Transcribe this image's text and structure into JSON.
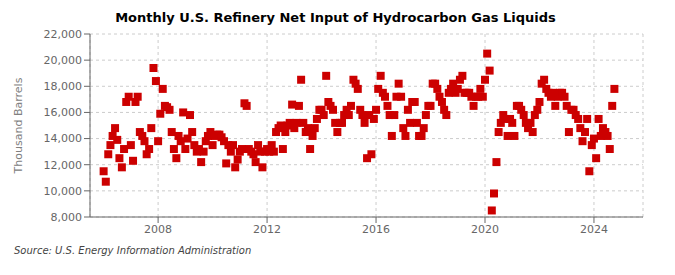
{
  "chart_data": {
    "type": "scatter",
    "title": "Monthly U.S. Refinery Net Input of Hydrocarbon Gas Liquids",
    "ylabel": "Thousand Barrels",
    "annotations": [
      "Source: U.S. Energy Information Administration"
    ],
    "color": "#cc0000",
    "marker": "square",
    "grid": true,
    "xlim": [
      2005.5,
      2025.8
    ],
    "xticks": [
      2008,
      2012,
      2016,
      2020,
      2024
    ],
    "ylim": [
      8000,
      22000
    ],
    "yticks": [
      {
        "value": 8000,
        "label": "8,000"
      },
      {
        "value": 10000,
        "label": "10,000"
      },
      {
        "value": 12000,
        "label": "12,000"
      },
      {
        "value": 14000,
        "label": "14,000"
      },
      {
        "value": 16000,
        "label": "16,000"
      },
      {
        "value": 18000,
        "label": "18,000"
      },
      {
        "value": 20000,
        "label": "20,000"
      },
      {
        "value": 22000,
        "label": "22,000"
      }
    ],
    "x": [
      2006.0,
      2006.08,
      2006.17,
      2006.25,
      2006.33,
      2006.42,
      2006.5,
      2006.58,
      2006.67,
      2006.75,
      2006.83,
      2006.92,
      2007.0,
      2007.08,
      2007.17,
      2007.25,
      2007.33,
      2007.42,
      2007.5,
      2007.58,
      2007.67,
      2007.75,
      2007.83,
      2007.92,
      2008.0,
      2008.08,
      2008.17,
      2008.25,
      2008.33,
      2008.42,
      2008.5,
      2008.58,
      2008.67,
      2008.75,
      2008.83,
      2008.92,
      2009.0,
      2009.08,
      2009.17,
      2009.25,
      2009.33,
      2009.42,
      2009.5,
      2009.58,
      2009.67,
      2009.75,
      2009.83,
      2009.92,
      2010.0,
      2010.08,
      2010.17,
      2010.25,
      2010.33,
      2010.42,
      2010.5,
      2010.58,
      2010.67,
      2010.75,
      2010.83,
      2010.92,
      2011.0,
      2011.08,
      2011.17,
      2011.25,
      2011.33,
      2011.42,
      2011.5,
      2011.58,
      2011.67,
      2011.75,
      2011.83,
      2011.92,
      2012.0,
      2012.08,
      2012.17,
      2012.25,
      2012.33,
      2012.42,
      2012.5,
      2012.58,
      2012.67,
      2012.75,
      2012.83,
      2012.92,
      2013.0,
      2013.08,
      2013.17,
      2013.25,
      2013.33,
      2013.42,
      2013.5,
      2013.58,
      2013.67,
      2013.75,
      2013.83,
      2013.92,
      2014.0,
      2014.08,
      2014.17,
      2014.25,
      2014.33,
      2014.42,
      2014.5,
      2014.58,
      2014.67,
      2014.75,
      2014.83,
      2014.92,
      2015.0,
      2015.08,
      2015.17,
      2015.25,
      2015.33,
      2015.42,
      2015.5,
      2015.58,
      2015.67,
      2015.75,
      2015.83,
      2015.92,
      2016.0,
      2016.08,
      2016.17,
      2016.25,
      2016.33,
      2016.42,
      2016.5,
      2016.58,
      2016.67,
      2016.75,
      2016.83,
      2016.92,
      2017.0,
      2017.08,
      2017.17,
      2017.25,
      2017.33,
      2017.42,
      2017.5,
      2017.58,
      2017.67,
      2017.75,
      2017.83,
      2017.92,
      2018.0,
      2018.08,
      2018.17,
      2018.25,
      2018.33,
      2018.42,
      2018.5,
      2018.58,
      2018.67,
      2018.75,
      2018.83,
      2018.92,
      2019.0,
      2019.08,
      2019.17,
      2019.25,
      2019.33,
      2019.42,
      2019.5,
      2019.58,
      2019.67,
      2019.75,
      2019.83,
      2019.92,
      2020.0,
      2020.08,
      2020.17,
      2020.25,
      2020.33,
      2020.42,
      2020.5,
      2020.58,
      2020.67,
      2020.75,
      2020.83,
      2020.92,
      2021.0,
      2021.08,
      2021.17,
      2021.25,
      2021.33,
      2021.42,
      2021.5,
      2021.58,
      2021.67,
      2021.75,
      2021.83,
      2021.92,
      2022.0,
      2022.08,
      2022.17,
      2022.25,
      2022.33,
      2022.42,
      2022.5,
      2022.58,
      2022.67,
      2022.75,
      2022.83,
      2022.92,
      2023.0,
      2023.08,
      2023.17,
      2023.25,
      2023.33,
      2023.42,
      2023.5,
      2023.58,
      2023.67,
      2023.75,
      2023.83,
      2023.92,
      2024.0,
      2024.08,
      2024.17,
      2024.25,
      2024.33,
      2024.42,
      2024.5,
      2024.58,
      2024.67,
      2024.75
    ],
    "values": [
      11500,
      10700,
      12800,
      13500,
      14200,
      14800,
      13900,
      12500,
      11800,
      13200,
      16800,
      17200,
      13500,
      12300,
      16800,
      17200,
      14500,
      14200,
      13800,
      12800,
      13200,
      14800,
      19400,
      18400,
      13800,
      15900,
      17800,
      16500,
      16400,
      16200,
      14500,
      13200,
      12500,
      14200,
      13800,
      16000,
      13200,
      14000,
      15800,
      14500,
      13500,
      13000,
      13200,
      12200,
      13000,
      13800,
      14200,
      14500,
      13500,
      14200,
      14300,
      14300,
      14100,
      13800,
      12100,
      13500,
      13000,
      13500,
      11800,
      12400,
      13000,
      13200,
      16700,
      16500,
      13200,
      13000,
      12800,
      12200,
      13500,
      13000,
      11800,
      13000,
      13200,
      13000,
      13500,
      13000,
      14500,
      14800,
      15000,
      13200,
      14500,
      15000,
      15200,
      16600,
      14800,
      15200,
      16500,
      18500,
      15200,
      14500,
      14800,
      13200,
      14200,
      14800,
      15500,
      16200,
      16200,
      15800,
      18800,
      16800,
      16500,
      16200,
      15200,
      14500,
      15200,
      15200,
      15800,
      16200,
      15800,
      16500,
      18500,
      18200,
      17800,
      16200,
      15800,
      15200,
      12500,
      15800,
      12800,
      15500,
      16200,
      17800,
      18800,
      17500,
      17200,
      16500,
      15800,
      14200,
      15800,
      17200,
      18200,
      17200,
      14800,
      14200,
      16200,
      15200,
      16800,
      16800,
      15200,
      14200,
      14200,
      14800,
      15800,
      16500,
      16500,
      18200,
      18200,
      17800,
      17200,
      16800,
      16200,
      15800,
      17500,
      17800,
      18200,
      17500,
      17800,
      18500,
      18800,
      17500,
      17500,
      17500,
      17200,
      16500,
      17200,
      17200,
      17800,
      17200,
      18500,
      20500,
      19200,
      8500,
      9800,
      12200,
      14500,
      15200,
      15800,
      15500,
      14200,
      15500,
      15200,
      14200,
      16500,
      16500,
      16200,
      15800,
      15200,
      14800,
      15200,
      14500,
      15800,
      16200,
      16800,
      18200,
      18500,
      17800,
      17500,
      17200,
      17500,
      16500,
      17200,
      17500,
      17500,
      17200,
      16500,
      14500,
      16200,
      16200,
      15800,
      15500,
      14800,
      13800,
      14500,
      15500,
      11500,
      13500,
      14000,
      12500,
      15500,
      14200,
      14800,
      14500,
      14200,
      13200,
      16500,
      17800
    ]
  }
}
